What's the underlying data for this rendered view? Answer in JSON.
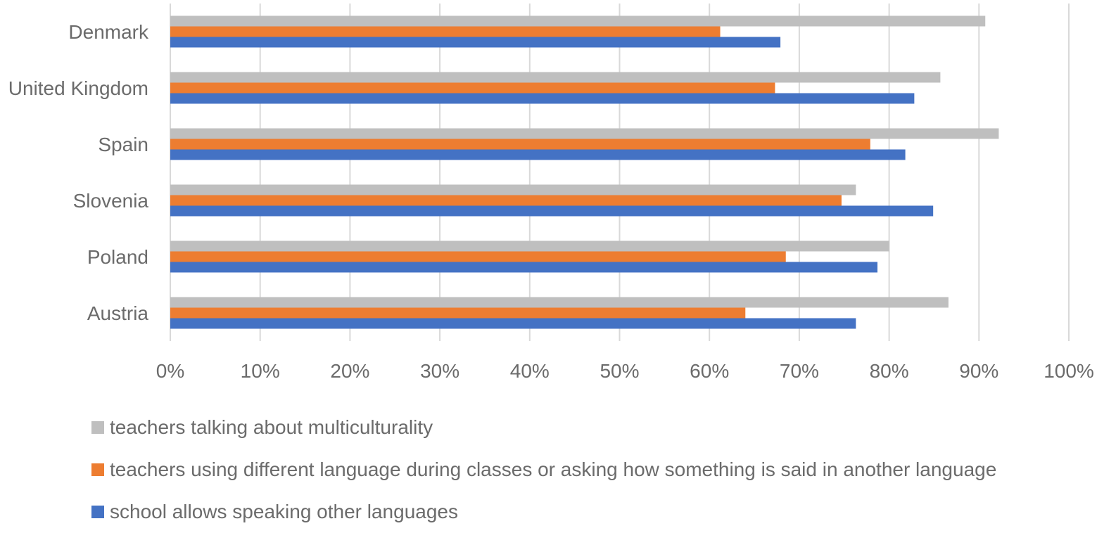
{
  "chart_data": {
    "type": "bar",
    "orientation": "horizontal",
    "categories": [
      "Denmark",
      "United Kingdom",
      "Spain",
      "Slovenia",
      "Poland",
      "Austria"
    ],
    "series": [
      {
        "name": "teachers talking about multiculturality",
        "color": "#bfbfbf",
        "values": [
          90.7,
          85.7,
          92.2,
          76.3,
          80.0,
          86.6
        ]
      },
      {
        "name": "teachers using different language during classes or asking how something is said in another language",
        "color": "#ed7d31",
        "values": [
          61.2,
          67.3,
          77.9,
          74.7,
          68.5,
          64.0
        ]
      },
      {
        "name": "school allows speaking other languages",
        "color": "#4472c4",
        "values": [
          67.9,
          82.8,
          81.8,
          84.9,
          78.7,
          76.3
        ]
      }
    ],
    "xlim": [
      0,
      100
    ],
    "x_ticks": [
      "0%",
      "10%",
      "20%",
      "30%",
      "40%",
      "50%",
      "60%",
      "70%",
      "80%",
      "90%",
      "100%"
    ],
    "grid": true,
    "legend_position": "bottom"
  }
}
